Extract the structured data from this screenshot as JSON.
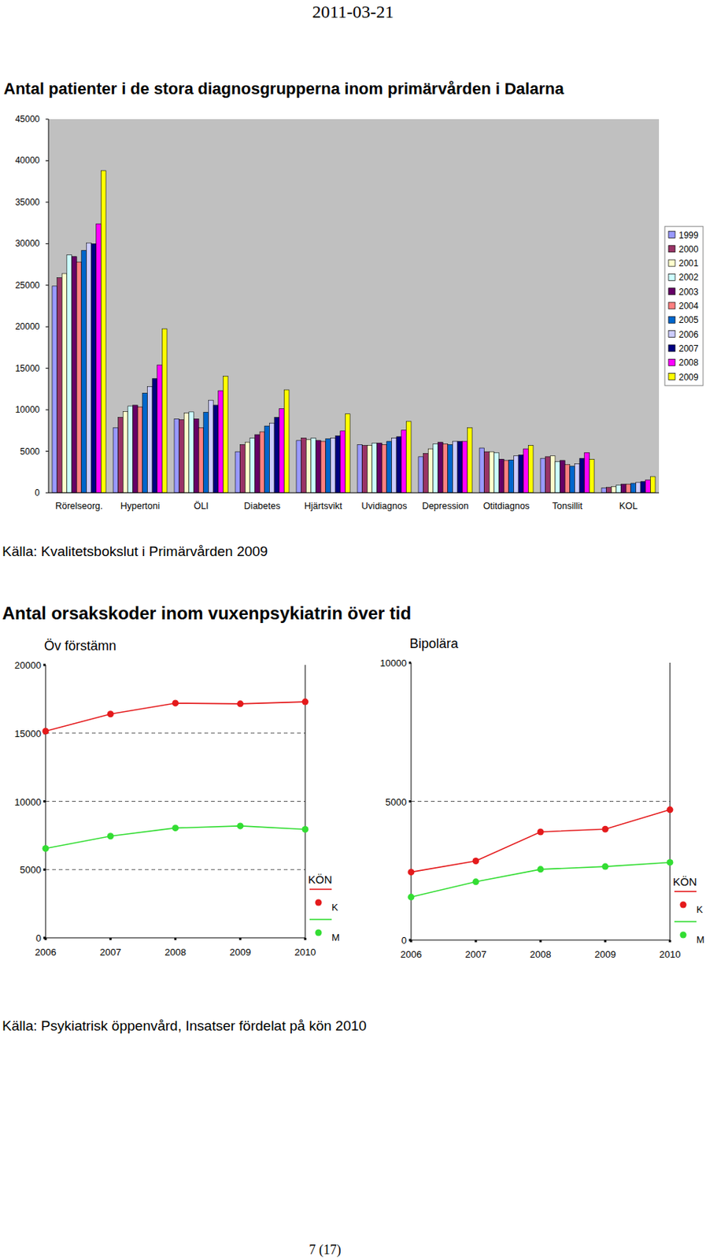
{
  "page": {
    "date": "2011-03-21",
    "page_number": "7 (17)"
  },
  "sections": [
    {
      "title": "Antal patienter i de stora diagnosgrupperna inom primärvården i Dalarna",
      "source": "Källa: Kvalitetsbokslut i Primärvården 2009"
    },
    {
      "title": "Antal orsakskoder inom vuxenpsykiatrin över tid",
      "source": "Källa: Psykiatrisk öppenvård, Insatser fördelat på kön 2010"
    }
  ],
  "chart_data": [
    {
      "type": "bar",
      "categories": [
        "Rörelseorg.",
        "Hypertoni",
        "ÖLI",
        "Diabetes",
        "Hjärtsvikt",
        "Uvidiagnos",
        "Depression",
        "Otitdiagnos",
        "Tonsillit",
        "KOL"
      ],
      "series": [
        {
          "name": "1999",
          "color": "#9999ff",
          "values": [
            24900,
            7850,
            8900,
            4950,
            6300,
            5800,
            4350,
            5400,
            4150,
            600
          ]
        },
        {
          "name": "2000",
          "color": "#993366",
          "values": [
            25900,
            9100,
            8800,
            5800,
            6600,
            5700,
            4750,
            4950,
            4350,
            650
          ]
        },
        {
          "name": "2001",
          "color": "#ffffcc",
          "values": [
            26400,
            9800,
            9600,
            6100,
            6400,
            5700,
            5300,
            4950,
            4450,
            750
          ]
        },
        {
          "name": "2002",
          "color": "#ccffff",
          "values": [
            28650,
            10450,
            9750,
            6600,
            6600,
            6000,
            5900,
            4850,
            3750,
            950
          ]
        },
        {
          "name": "2003",
          "color": "#660066",
          "values": [
            28450,
            10550,
            8900,
            7000,
            6300,
            6000,
            6100,
            4050,
            3900,
            1050
          ]
        },
        {
          "name": "2004",
          "color": "#ff8080",
          "values": [
            27800,
            10350,
            7850,
            7350,
            6200,
            5800,
            5900,
            3900,
            3400,
            1050
          ]
        },
        {
          "name": "2005",
          "color": "#0066cc",
          "values": [
            29200,
            12000,
            9700,
            8050,
            6500,
            6200,
            5800,
            3950,
            3200,
            1150
          ]
        },
        {
          "name": "2006",
          "color": "#ccccff",
          "values": [
            30100,
            12800,
            11150,
            8400,
            6600,
            6600,
            6200,
            4450,
            3500,
            1250
          ]
        },
        {
          "name": "2007",
          "color": "#000080",
          "values": [
            30000,
            13750,
            10550,
            9100,
            6850,
            6750,
            6200,
            4550,
            4150,
            1350
          ]
        },
        {
          "name": "2008",
          "color": "#ff00ff",
          "values": [
            32400,
            15400,
            12300,
            10150,
            7450,
            7550,
            6200,
            5300,
            4850,
            1550
          ]
        },
        {
          "name": "2009",
          "color": "#ffff00",
          "values": [
            38800,
            19750,
            14050,
            12400,
            9500,
            8600,
            7850,
            5700,
            4050,
            1950
          ]
        }
      ],
      "ylim": [
        0,
        45000
      ],
      "yticks": [
        0,
        5000,
        10000,
        15000,
        20000,
        25000,
        30000,
        35000,
        40000,
        45000
      ],
      "grid": false,
      "legend": "right"
    },
    {
      "type": "line",
      "title": "Öv förstämn",
      "legend_title": "KÖN",
      "x": [
        2006,
        2007,
        2008,
        2009,
        2010
      ],
      "xlim": [
        2006,
        2010
      ],
      "xticks": [
        2006,
        2007,
        2008,
        2009,
        2010
      ],
      "ylim": [
        0,
        20000
      ],
      "yticks": [
        0,
        5000,
        10000,
        15000,
        20000
      ],
      "series": [
        {
          "name": "K",
          "color": "#e41a1c",
          "values": [
            15150,
            16400,
            17200,
            17150,
            17300
          ]
        },
        {
          "name": "M",
          "color": "#33dd33",
          "values": [
            6550,
            7450,
            8050,
            8200,
            7950
          ]
        }
      ],
      "marker": "circle",
      "grid": true,
      "legend": "right"
    },
    {
      "type": "line",
      "title": "Bipolära",
      "legend_title": "KÖN",
      "x": [
        2006,
        2007,
        2008,
        2009,
        2010
      ],
      "xlim": [
        2006,
        2010
      ],
      "xticks": [
        2006,
        2007,
        2008,
        2009,
        2010
      ],
      "ylim": [
        0,
        10000
      ],
      "yticks": [
        0,
        5000,
        10000
      ],
      "series": [
        {
          "name": "K",
          "color": "#e41a1c",
          "values": [
            2450,
            2850,
            3900,
            4000,
            4700
          ]
        },
        {
          "name": "M",
          "color": "#33dd33",
          "values": [
            1550,
            2100,
            2550,
            2650,
            2800
          ]
        }
      ],
      "marker": "circle",
      "grid": true,
      "legend": "right"
    }
  ]
}
